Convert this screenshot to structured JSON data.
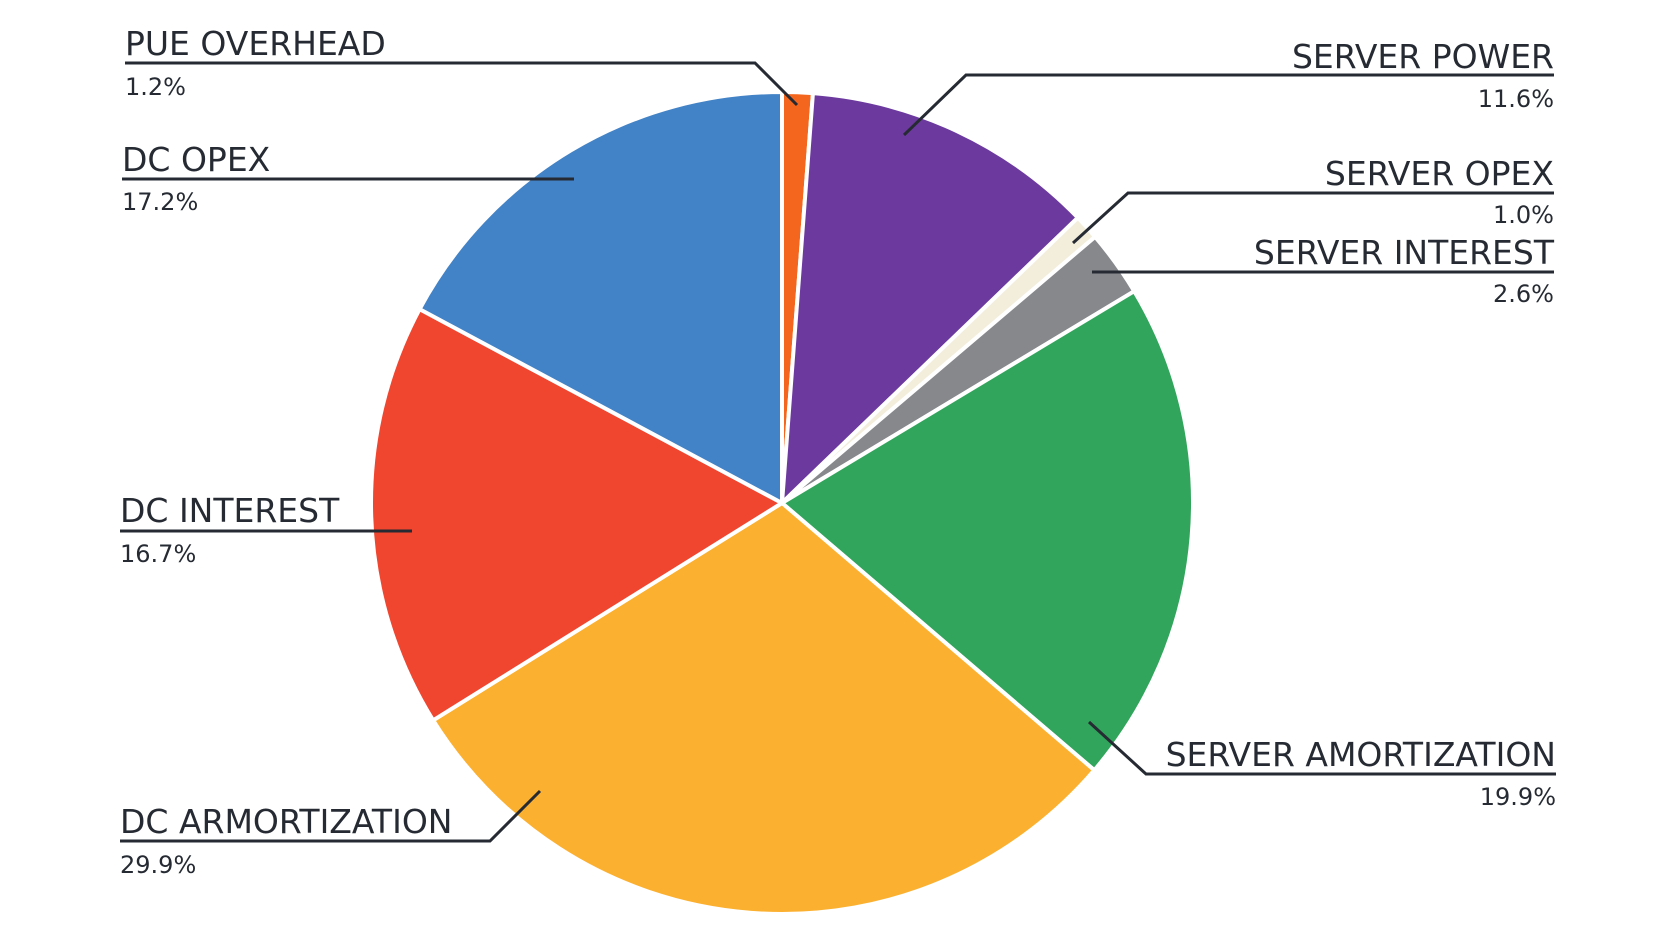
{
  "chart_data": {
    "type": "pie",
    "start_angle_deg": 0,
    "direction": "clockwise",
    "slices": [
      {
        "label": "PUE OVERHEAD",
        "value": 1.2,
        "value_label": "1.2%",
        "color": "#f4661e"
      },
      {
        "label": "SERVER POWER",
        "value": 11.6,
        "value_label": "11.6%",
        "color": "#6c3a9e"
      },
      {
        "label": "SERVER OPEX",
        "value": 1.0,
        "value_label": "1.0%",
        "color": "#f3eddc"
      },
      {
        "label": "SERVER INTEREST",
        "value": 2.6,
        "value_label": "2.6%",
        "color": "#87888c"
      },
      {
        "label": "SERVER AMORTIZATION",
        "value": 19.9,
        "value_label": "19.9%",
        "color": "#31a55b"
      },
      {
        "label": "DC ARMORTIZATION",
        "value": 29.9,
        "value_label": "29.9%",
        "color": "#fcb02f"
      },
      {
        "label": "DC INTEREST",
        "value": 16.7,
        "value_label": "16.7%",
        "color": "#f0452f"
      },
      {
        "label": "DC OPEX",
        "value": 17.2,
        "value_label": "17.2%",
        "color": "#4282c6"
      }
    ]
  }
}
